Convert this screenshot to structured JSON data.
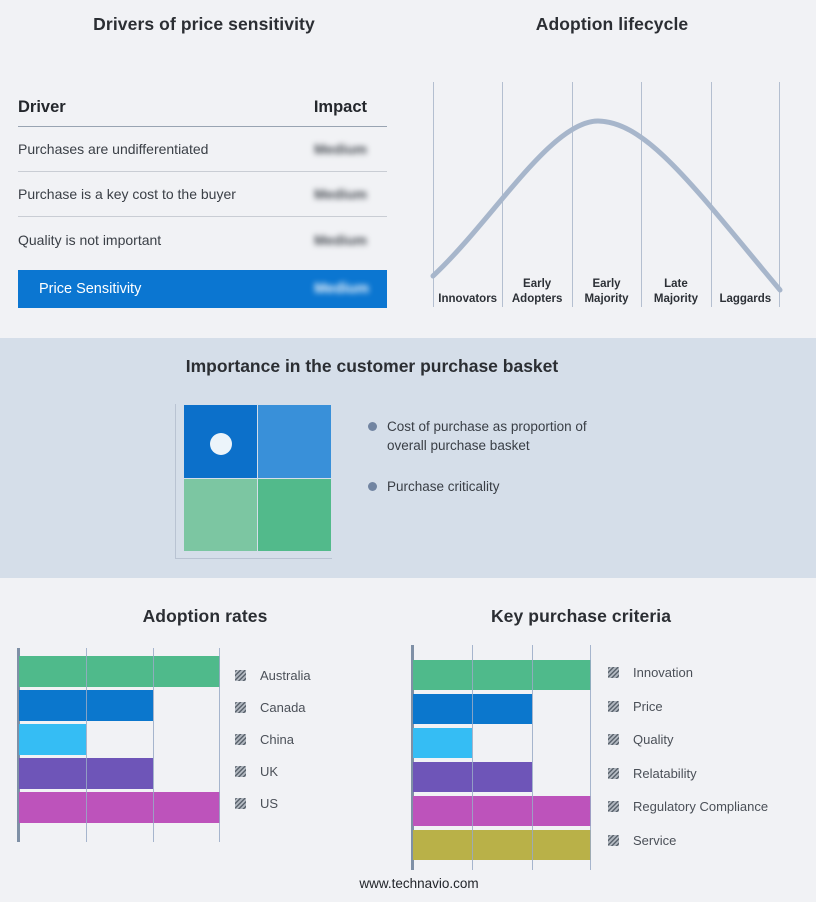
{
  "page": {
    "footer": "www.technavio.com"
  },
  "drivers_panel": {
    "title": "Drivers of price sensitivity",
    "columns": {
      "driver": "Driver",
      "impact": "Impact"
    },
    "rows": [
      {
        "driver": "Purchases are undifferentiated",
        "impact": "Medium",
        "impact_blurred": true
      },
      {
        "driver": "Purchase is a key cost to the buyer",
        "impact": "Medium",
        "impact_blurred": true
      },
      {
        "driver": "Quality is not important",
        "impact": "Medium",
        "impact_blurred": true
      }
    ],
    "summary": {
      "label": "Price Sensitivity",
      "impact": "Medium",
      "impact_blurred": true,
      "accent_color": "#0b76d1"
    }
  },
  "lifecycle_panel": {
    "title": "Adoption lifecycle",
    "stages": [
      "Innovators",
      "Early Adopters",
      "Early Majority",
      "Late Majority",
      "Laggards"
    ],
    "curve_color": "#a7b6cb"
  },
  "basket_panel": {
    "title": "Importance in the customer purchase basket",
    "bullets": [
      "Cost of purchase as proportion of overall purchase basket",
      "Purchase criticality"
    ],
    "quadrant_colors": [
      "#0c70ca",
      "#3990d9",
      "#7cc6a2",
      "#52ba8b"
    ],
    "marker": "white dot in upper-left quadrant",
    "band_color": "#d5dee9"
  },
  "chart_data": [
    {
      "type": "bar",
      "orientation": "horizontal",
      "title": "Adoption rates",
      "categories": [
        "Australia",
        "Canada",
        "China",
        "UK",
        "US"
      ],
      "values": [
        3,
        2,
        1,
        2,
        3
      ],
      "value_note": "relative length in gridline units, no numeric axis labels shown",
      "xlim": [
        0,
        3
      ],
      "colors": [
        "#4fba8b",
        "#0b77cd",
        "#35bdf4",
        "#6e55b8",
        "#bd53bb"
      ],
      "grid": true,
      "legend_position": "right",
      "legend_swatch_style": "gray diagonal hatch"
    },
    {
      "type": "bar",
      "orientation": "horizontal",
      "title": "Key purchase criteria",
      "categories": [
        "Innovation",
        "Price",
        "Quality",
        "Relatability",
        "Regulatory Compliance",
        "Service"
      ],
      "values": [
        3,
        2,
        1,
        2,
        3,
        3
      ],
      "value_note": "relative length in gridline units, no numeric axis labels shown",
      "xlim": [
        0,
        3
      ],
      "colors": [
        "#4fba8b",
        "#0b77cd",
        "#35bdf4",
        "#6e55b8",
        "#bd53bb",
        "#b9b148"
      ],
      "grid": true,
      "legend_position": "right",
      "legend_swatch_style": "gray diagonal hatch"
    },
    {
      "type": "line",
      "title": "Adoption lifecycle",
      "categories": [
        "Innovators",
        "Early Adopters",
        "Early Majority",
        "Late Majority",
        "Laggards"
      ],
      "values": [
        0.31,
        0.77,
        0.99,
        0.62,
        0.22
      ],
      "value_note": "approximate normalized curve height at each stage center; bell curve peaks at Early Majority",
      "ylim": [
        0,
        1
      ],
      "grid": "vertical stage separators only",
      "legend_position": "none"
    }
  ]
}
